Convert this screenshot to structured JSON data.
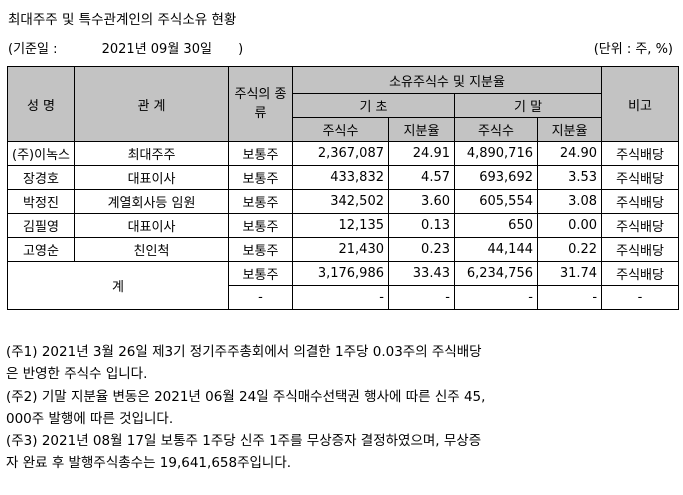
{
  "title": "최대주주 및 특수관계인의 주식소유 현황",
  "base_date": {
    "label": "(기준일 :",
    "value": "2021년 09월 30일",
    "close": ")"
  },
  "unit": "(단위 : 주, %)",
  "headers": {
    "name": "성 명",
    "relation": "관 계",
    "stock_type": "주식의 종류",
    "holdings": "소유주식수 및 지분율",
    "begin": "기 초",
    "end": "기 말",
    "shares": "주식수",
    "ratio": "지분율",
    "note": "비고"
  },
  "rows": [
    {
      "name": "(주)이녹스",
      "relation": "최대주주",
      "type": "보통주",
      "begin_shares": "2,367,087",
      "begin_ratio": "24.91",
      "end_shares": "4,890,716",
      "end_ratio": "24.90",
      "note": "주식배당"
    },
    {
      "name": "장경호",
      "relation": "대표이사",
      "type": "보통주",
      "begin_shares": "433,832",
      "begin_ratio": "4.57",
      "end_shares": "693,692",
      "end_ratio": "3.53",
      "note": "주식배당"
    },
    {
      "name": "박정진",
      "relation": "계열회사등 임원",
      "type": "보통주",
      "begin_shares": "342,502",
      "begin_ratio": "3.60",
      "end_shares": "605,554",
      "end_ratio": "3.08",
      "note": "주식배당"
    },
    {
      "name": "김필영",
      "relation": "대표이사",
      "type": "보통주",
      "begin_shares": "12,135",
      "begin_ratio": "0.13",
      "end_shares": "650",
      "end_ratio": "0.00",
      "note": "주식배당"
    },
    {
      "name": "고영순",
      "relation": "친인척",
      "type": "보통주",
      "begin_shares": "21,430",
      "begin_ratio": "0.23",
      "end_shares": "44,144",
      "end_ratio": "0.22",
      "note": "주식배당"
    }
  ],
  "total": {
    "label": "계",
    "rows": [
      {
        "type": "보통주",
        "begin_shares": "3,176,986",
        "begin_ratio": "33.43",
        "end_shares": "6,234,756",
        "end_ratio": "31.74",
        "note": "주식배당"
      },
      {
        "type": "-",
        "begin_shares": "-",
        "begin_ratio": "-",
        "end_shares": "-",
        "end_ratio": "-",
        "note": "-"
      }
    ]
  },
  "notes": [
    "(주1) 2021년 3월 26일 제3기 정기주주총회에서 의결한 1주당 0.03주의 주식배당",
    "은 반영한 주식수 입니다.",
    "(주2) 기말 지분율 변동은 2021년 06월 24일 주식매수선택권 행사에 따른 신주 45,",
    "000주 발행에 따른 것입니다.",
    "(주3) 2021년 08월 17일 보통주 1주당 신주 1주를 무상증자 결정하였으며, 무상증",
    "자 완료 후 발행주식총수는 19,641,658주입니다."
  ]
}
